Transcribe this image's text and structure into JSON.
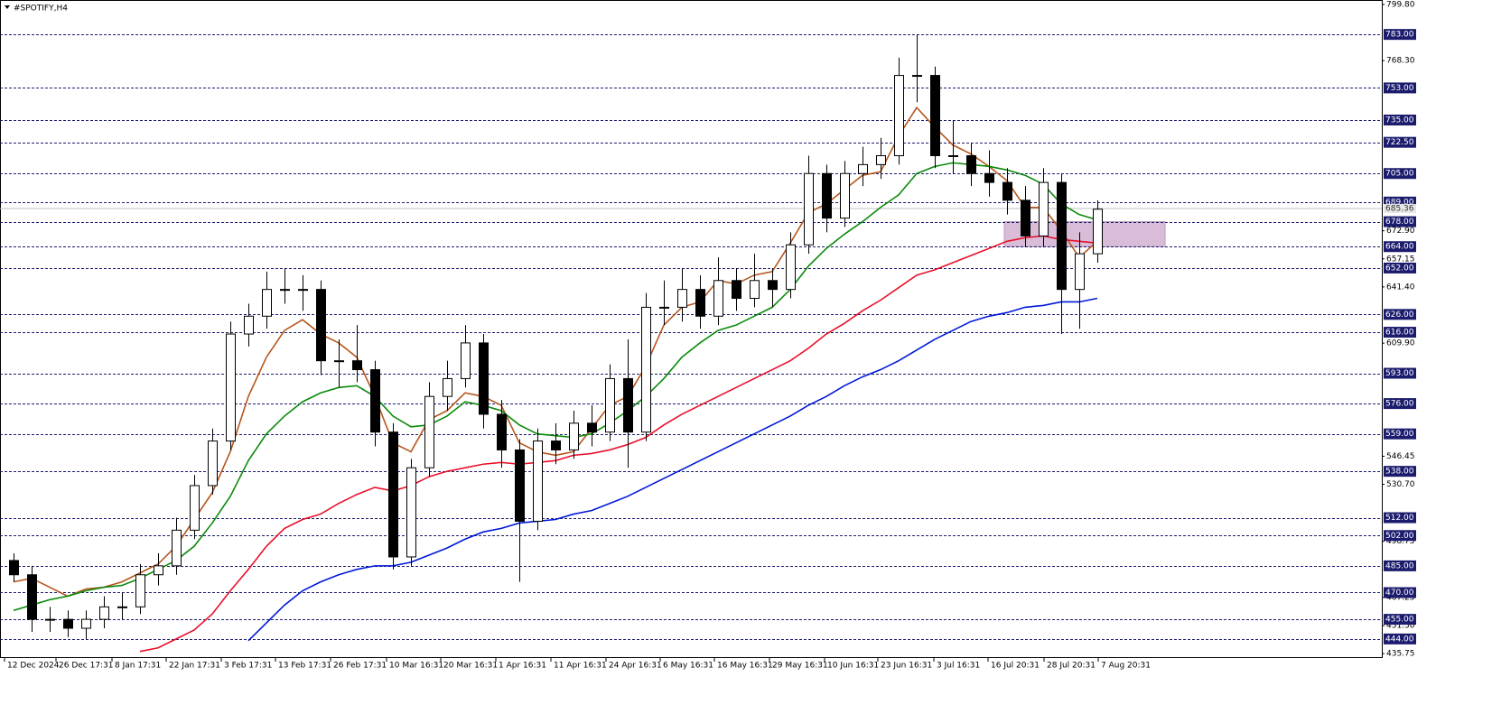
{
  "chart_data": {
    "type": "candlestick",
    "title": "#SPOTIFY,H4",
    "xlim": [
      -0.75,
      75.75
    ],
    "ylim": [
      433.3,
      801.8
    ],
    "open": [
      488,
      480,
      455,
      455,
      450,
      455,
      462,
      462,
      480,
      485,
      505,
      530,
      555,
      615,
      625,
      640,
      640,
      640,
      600,
      600,
      595,
      560,
      490,
      540,
      580,
      590,
      610,
      570,
      550,
      510,
      555,
      550,
      565,
      560,
      590,
      560,
      630,
      630,
      640,
      625,
      645,
      635,
      645,
      640,
      665,
      705,
      680,
      705,
      710,
      715,
      760,
      760,
      715,
      715,
      705,
      700,
      690,
      670,
      700,
      640,
      660
    ],
    "high": [
      492,
      485,
      462,
      460,
      460,
      468,
      470,
      486,
      492,
      512,
      536,
      562,
      622,
      632,
      650,
      652,
      648,
      645,
      612,
      620,
      600,
      565,
      545,
      588,
      600,
      620,
      615,
      578,
      556,
      562,
      565,
      572,
      575,
      598,
      612,
      638,
      645,
      652,
      648,
      658,
      652,
      660,
      652,
      672,
      715,
      710,
      712,
      720,
      725,
      770,
      783,
      765,
      735,
      722,
      718,
      708,
      698,
      708,
      705,
      672,
      690
    ],
    "low": [
      476,
      448,
      448,
      445,
      444,
      450,
      455,
      458,
      474,
      480,
      500,
      525,
      550,
      608,
      618,
      632,
      628,
      592,
      585,
      588,
      552,
      483,
      485,
      535,
      572,
      585,
      562,
      540,
      476,
      505,
      542,
      545,
      552,
      555,
      540,
      555,
      620,
      622,
      618,
      620,
      628,
      630,
      630,
      635,
      660,
      672,
      675,
      698,
      702,
      710,
      745,
      708,
      705,
      698,
      692,
      682,
      664,
      664,
      615,
      618,
      655
    ],
    "close": [
      480,
      455,
      455,
      450,
      455,
      462,
      462,
      480,
      485,
      505,
      530,
      555,
      615,
      625,
      640,
      640,
      640,
      600,
      600,
      595,
      560,
      490,
      540,
      580,
      590,
      610,
      570,
      550,
      510,
      555,
      550,
      565,
      560,
      590,
      560,
      630,
      630,
      640,
      625,
      645,
      635,
      645,
      640,
      665,
      705,
      680,
      705,
      710,
      715,
      760,
      760,
      715,
      715,
      705,
      700,
      690,
      670,
      700,
      640,
      660,
      685
    ],
    "bull_color": "#ffffff",
    "bear_color": "#000000",
    "lines": [
      {
        "color": "#b5561c",
        "values": [
          476,
          478,
          473,
          468,
          472,
          473,
          476,
          481,
          486,
          496,
          511,
          526,
          549,
          580,
          602,
          617,
          623,
          615,
          610,
          602,
          580,
          554,
          549,
          567,
          572,
          582,
          580,
          575,
          554,
          549,
          547,
          549,
          562,
          575,
          580,
          597,
          620,
          630,
          633,
          645,
          643,
          648,
          650,
          666,
          683,
          688,
          696,
          704,
          706,
          726,
          742,
          731,
          721,
          716,
          709,
          701,
          686,
          686,
          673,
          658,
          667
        ]
      },
      {
        "color": "#0a8a0a",
        "values": [
          460,
          463,
          466,
          468,
          471,
          473,
          474,
          478,
          483,
          488,
          496,
          509,
          524,
          544,
          559,
          569,
          577,
          582,
          585,
          586,
          580,
          569,
          563,
          564,
          569,
          577,
          575,
          572,
          564,
          559,
          558,
          557,
          559,
          565,
          572,
          580,
          590,
          602,
          610,
          617,
          620,
          625,
          630,
          640,
          653,
          663,
          671,
          678,
          686,
          693,
          705,
          709,
          711,
          710,
          709,
          707,
          704,
          699,
          688,
          682,
          679
        ]
      },
      {
        "color": "#e8102a",
        "values": [
          null,
          null,
          null,
          null,
          null,
          null,
          null,
          437,
          439,
          444,
          449,
          458,
          471,
          483,
          496,
          506,
          511,
          514,
          520,
          525,
          529,
          527,
          530,
          535,
          538,
          540,
          542,
          543,
          542,
          543,
          544,
          547,
          548,
          550,
          553,
          557,
          564,
          570,
          575,
          580,
          585,
          590,
          595,
          600,
          607,
          615,
          621,
          628,
          634,
          641,
          648,
          651,
          655,
          659,
          663,
          667,
          669,
          670,
          668,
          667,
          666
        ]
      },
      {
        "color": "#0018d8",
        "values": [
          null,
          null,
          null,
          null,
          null,
          null,
          null,
          null,
          null,
          null,
          null,
          null,
          null,
          443,
          453,
          463,
          471,
          476,
          480,
          483,
          485,
          485,
          487,
          491,
          495,
          500,
          504,
          506,
          509,
          510,
          511,
          514,
          516,
          520,
          524,
          529,
          534,
          539,
          544,
          549,
          554,
          559,
          564,
          569,
          575,
          580,
          586,
          591,
          595,
          600,
          606,
          612,
          617,
          622,
          625,
          627,
          630,
          631,
          633,
          633,
          635
        ]
      }
    ],
    "zone": {
      "x": [
        54.85,
        63.75
      ],
      "y": [
        664,
        678
      ],
      "color": "#d8bcd8"
    },
    "level_color": "#1c1c6e",
    "levels": [
      {
        "value": 783,
        "label": "783.00"
      },
      {
        "value": 753,
        "label": "753.00"
      },
      {
        "value": 735,
        "label": "735.00"
      },
      {
        "value": 722.5,
        "label": "722.50"
      },
      {
        "value": 705,
        "label": "705.00"
      },
      {
        "value": 689,
        "label": "689.00"
      },
      {
        "value": 678,
        "label": "678.00"
      },
      {
        "value": 664,
        "label": "664.00"
      },
      {
        "value": 652,
        "label": "652.00"
      },
      {
        "value": 626,
        "label": "626.00"
      },
      {
        "value": 616,
        "label": "616.00"
      },
      {
        "value": 593,
        "label": "593.00"
      },
      {
        "value": 576,
        "label": "576.00"
      },
      {
        "value": 559,
        "label": "559.00"
      },
      {
        "value": 538,
        "label": "538.00"
      },
      {
        "value": 512,
        "label": "512.00"
      },
      {
        "value": 502,
        "label": "502.00"
      },
      {
        "value": 485,
        "label": "485.00"
      },
      {
        "value": 470,
        "label": "470.00"
      },
      {
        "value": 455,
        "label": "455.00"
      },
      {
        "value": 444,
        "label": "444.00"
      }
    ],
    "yticks": [
      {
        "value": 799.8,
        "label": "799.80"
      },
      {
        "value": 768.3,
        "label": "768.30"
      },
      {
        "value": 672.9,
        "label": "672.90"
      },
      {
        "value": 657.15,
        "label": "657.15"
      },
      {
        "value": 641.4,
        "label": "641.40"
      },
      {
        "value": 609.9,
        "label": "609.90"
      },
      {
        "value": 546.45,
        "label": "546.45"
      },
      {
        "value": 530.7,
        "label": "530.70"
      },
      {
        "value": 498.75,
        "label": "498.75"
      },
      {
        "value": 467.25,
        "label": "467.25"
      },
      {
        "value": 451.5,
        "label": "451.50"
      },
      {
        "value": 435.75,
        "label": "435.75"
      }
    ],
    "current_price": {
      "value": 685.36,
      "label": "685.36"
    },
    "xticks": [
      {
        "value": -0.5,
        "label": "12 Dec 2024"
      },
      {
        "value": 2.35,
        "label": "26 Dec 17:31"
      },
      {
        "value": 5.45,
        "label": "8 Jan 17:31"
      },
      {
        "value": 8.45,
        "label": "22 Jan 17:31"
      },
      {
        "value": 11.5,
        "label": "3 Feb 17:31"
      },
      {
        "value": 14.5,
        "label": "13 Feb 17:31"
      },
      {
        "value": 17.55,
        "label": "26 Feb 17:31"
      },
      {
        "value": 20.65,
        "label": "10 Mar 16:31"
      },
      {
        "value": 23.65,
        "label": "20 Mar 16:31"
      },
      {
        "value": 26.7,
        "label": "1 Apr 16:31"
      },
      {
        "value": 29.75,
        "label": "11 Apr 16:31"
      },
      {
        "value": 32.8,
        "label": "24 Apr 16:31"
      },
      {
        "value": 35.8,
        "label": "6 May 16:31"
      },
      {
        "value": 38.8,
        "label": "16 May 16:31"
      },
      {
        "value": 41.85,
        "label": "29 May 16:31"
      },
      {
        "value": 44.9,
        "label": "10 Jun 16:31"
      },
      {
        "value": 47.85,
        "label": "23 Jun 16:31"
      },
      {
        "value": 50.95,
        "label": "3 Jul 16:31"
      },
      {
        "value": 53.95,
        "label": "16 Jul 20:31"
      },
      {
        "value": 57.05,
        "label": "28 Jul 20:31"
      },
      {
        "value": 60.05,
        "label": "7 Aug 20:31"
      }
    ]
  }
}
